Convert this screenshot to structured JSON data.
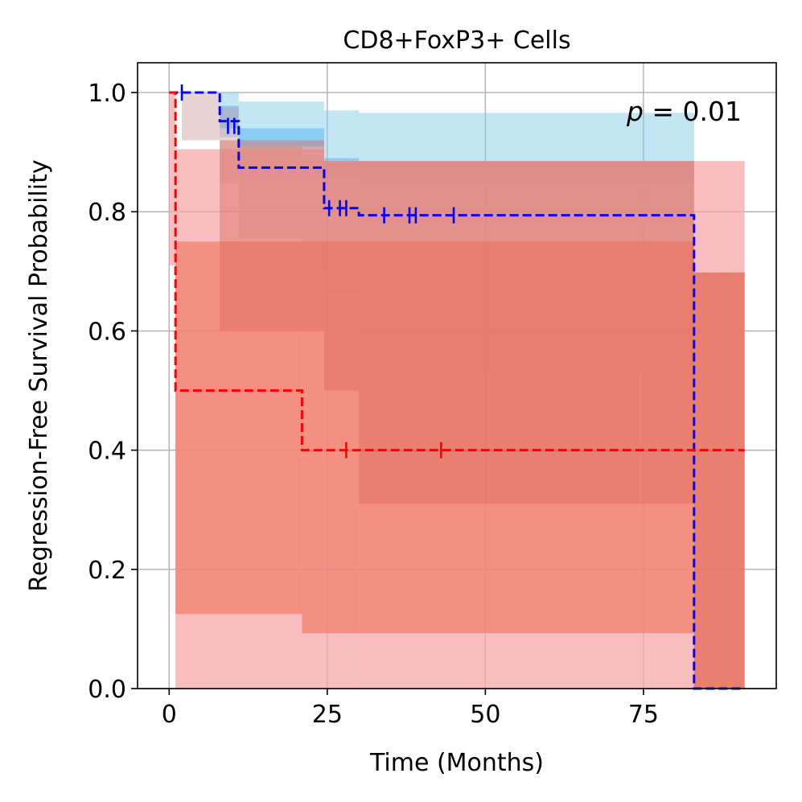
{
  "chart_data": {
    "type": "line",
    "subtype": "kaplan-meier-step",
    "title": "CD8+FoxP3+ Cells",
    "xlabel": "Time (Months)",
    "ylabel": "Regression-Free Survival Probability",
    "xlim": [
      -5,
      96
    ],
    "ylim": [
      0,
      1.05
    ],
    "xticks": [
      0,
      25,
      50,
      75
    ],
    "xtick_labels": [
      "0",
      "25",
      "50",
      "75"
    ],
    "yticks": [
      0.0,
      0.2,
      0.4,
      0.6,
      0.8,
      1.0
    ],
    "ytick_labels": [
      "0.0",
      "0.2",
      "0.4",
      "0.6",
      "0.8",
      "1.0"
    ],
    "grid": true,
    "annotation": {
      "p_symbol": "p",
      "p_rest": " = 0.01",
      "placement": "top-right"
    },
    "series": [
      {
        "name": "blue",
        "color": "#0000ff",
        "linestyle": "dashed",
        "steps": [
          [
            0,
            1.0
          ],
          [
            8,
            0.952
          ],
          [
            11,
            0.874
          ],
          [
            24.5,
            0.806
          ],
          [
            30,
            0.794
          ],
          [
            83,
            0.0
          ],
          [
            91,
            0.0
          ]
        ],
        "censors": [
          [
            2,
            1.0
          ],
          [
            9.3,
            0.944
          ],
          [
            10.3,
            0.944
          ],
          [
            25.3,
            0.806
          ],
          [
            27,
            0.806
          ],
          [
            28,
            0.806
          ],
          [
            34,
            0.794
          ],
          [
            38,
            0.794
          ],
          [
            39,
            0.794
          ],
          [
            45,
            0.794
          ]
        ],
        "ci_layers": [
          {
            "fill": "#87ceeb",
            "opacity": 0.5,
            "steps": [
              [
                0,
                1.0,
                1.0
              ],
              [
                8,
                0.925,
                1.0
              ],
              [
                11,
                0.855,
                0.985
              ],
              [
                24.5,
                0.8,
                0.97
              ],
              [
                30,
                0.78,
                0.966
              ],
              [
                83,
                0.0,
                0.0
              ]
            ]
          },
          {
            "fill": "#5db8f7",
            "opacity": 0.55,
            "steps": [
              [
                0,
                1.0,
                1.0
              ],
              [
                8,
                0.94,
                0.978
              ],
              [
                11,
                0.91,
                0.94
              ],
              [
                24.5,
                0.86,
                0.89
              ],
              [
                30,
                0.85,
                0.885
              ],
              [
                83,
                0.0,
                0.0
              ]
            ]
          },
          {
            "fill": "#cc9e9e",
            "opacity": 0.45,
            "steps": [
              [
                0,
                1.0,
                1.0
              ],
              [
                2,
                0.92,
                1.0
              ],
              [
                8,
                0.848,
                0.975
              ],
              [
                11,
                0.755,
                0.91
              ],
              [
                21,
                0.7,
                0.885
              ],
              [
                24.5,
                0.665,
                0.885
              ],
              [
                30,
                0.53,
                0.885
              ],
              [
                83,
                0.0,
                0.0
              ]
            ]
          }
        ]
      },
      {
        "name": "red",
        "color": "#ff0000",
        "linestyle": "dashed",
        "steps": [
          [
            0,
            1.0
          ],
          [
            1,
            0.5
          ],
          [
            21,
            0.4
          ],
          [
            91,
            0.4
          ]
        ],
        "censors": [
          [
            28,
            0.4
          ],
          [
            43,
            0.4
          ]
        ],
        "ci_layers": [
          {
            "fill": "#f4a7a9",
            "opacity": 0.75,
            "steps": [
              [
                0,
                0.71,
                1.0
              ],
              [
                1,
                0.0,
                0.905
              ],
              [
                21,
                0.0,
                0.905
              ],
              [
                24.5,
                0.0,
                0.885
              ],
              [
                30,
                0.0,
                0.885
              ],
              [
                83,
                0.0,
                0.885
              ],
              [
                91,
                0.0,
                0.885
              ]
            ]
          },
          {
            "fill": "#f37e6b",
            "opacity": 0.72,
            "steps": [
              [
                1,
                0.125,
                0.75
              ],
              [
                21,
                0.093,
                0.75
              ],
              [
                24.5,
                0.093,
                0.75
              ],
              [
                30,
                0.093,
                0.75
              ],
              [
                83,
                0.0,
                0.698
              ],
              [
                91,
                0.0,
                0.698
              ]
            ]
          },
          {
            "fill": "#d96a5c",
            "opacity": 0.45,
            "steps": [
              [
                8,
                0.6,
                0.92
              ],
              [
                11,
                0.6,
                0.92
              ],
              [
                24.5,
                0.5,
                0.885
              ],
              [
                30,
                0.31,
                0.885
              ],
              [
                83,
                0.0,
                0.698
              ],
              [
                91,
                0.0,
                0.698
              ]
            ]
          }
        ]
      }
    ]
  }
}
